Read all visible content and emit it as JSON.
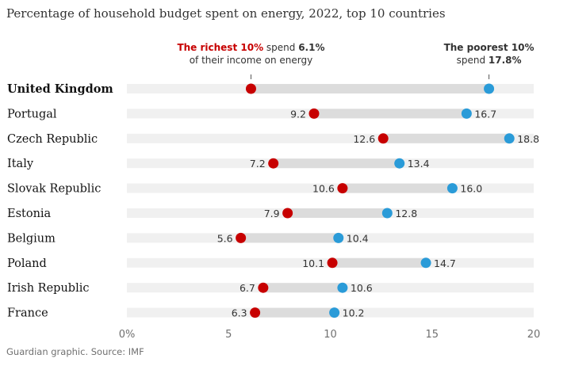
{
  "chart_data": {
    "type": "dumbbell",
    "title": "Percentage of household budget spent on energy, 2022, top 10 countries",
    "source": "Guardian graphic. Source: IMF",
    "categories": [
      "United Kingdom",
      "Portugal",
      "Czech Republic",
      "Italy",
      "Slovak Republic",
      "Estonia",
      "Belgium",
      "Poland",
      "Irish Republic",
      "France"
    ],
    "series": [
      {
        "name": "The richest 10%",
        "color": "#c70000",
        "values": [
          6.1,
          9.2,
          12.6,
          7.2,
          10.6,
          7.9,
          5.6,
          10.1,
          6.7,
          6.3
        ]
      },
      {
        "name": "The poorest 10%",
        "color": "#2a9bd8",
        "values": [
          17.8,
          16.7,
          18.8,
          13.4,
          16.0,
          12.8,
          10.4,
          14.7,
          10.6,
          10.2
        ]
      }
    ],
    "value_labels_rich": [
      "",
      "9.2",
      "12.6",
      "7.2",
      "10.6",
      "7.9",
      "5.6",
      "10.1",
      "6.7",
      "6.3"
    ],
    "value_labels_poor": [
      "",
      "16.7",
      "18.8",
      "13.4",
      "16.0",
      "12.8",
      "10.4",
      "14.7",
      "10.6",
      "10.2"
    ],
    "xlim": [
      0,
      20
    ],
    "xticks": [
      "0%",
      "5",
      "10",
      "15",
      "20"
    ],
    "highlight": "United Kingdom",
    "annotations": {
      "rich": {
        "highlight": "The richest 10%",
        "text1": " spend ",
        "value": "6.1%",
        "line2": "of their income on energy"
      },
      "poor": {
        "highlight": "The poorest 10%",
        "text1": "spend ",
        "value": "17.8%"
      }
    }
  }
}
